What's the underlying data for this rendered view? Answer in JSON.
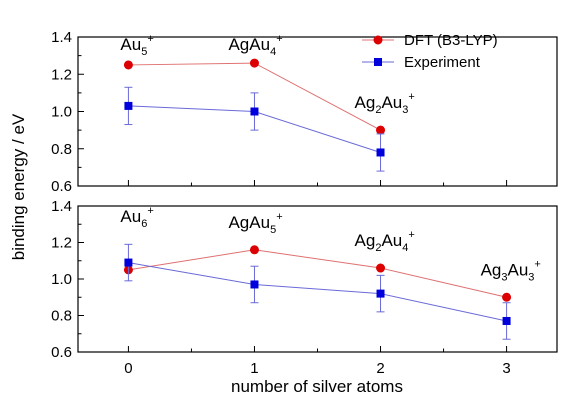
{
  "chart_data": {
    "type": "line",
    "xlabel": "number of silver atoms",
    "ylabel": "binding energy / eV",
    "legend": {
      "placement": "top-right",
      "entries": [
        {
          "label": "DFT (B3-LYP)",
          "color": "#dd0000",
          "marker": "circle"
        },
        {
          "label": "Experiment",
          "color": "#0000dd",
          "marker": "square"
        }
      ]
    },
    "grid": false,
    "panels": [
      {
        "position": "top",
        "xlim": [
          -0.4,
          3.4
        ],
        "ylim": [
          0.6,
          1.4
        ],
        "yticks": [
          0.6,
          0.8,
          1.0,
          1.2,
          1.4
        ],
        "series": [
          {
            "name": "DFT (B3-LYP)",
            "color": "#dd0000",
            "line_color": "#e07070",
            "marker": "circle",
            "x": [
              0,
              1,
              2
            ],
            "y": [
              1.25,
              1.26,
              0.9
            ]
          },
          {
            "name": "Experiment",
            "color": "#0000dd",
            "line_color": "#6a6ad8",
            "marker": "square",
            "x": [
              0,
              1,
              2
            ],
            "y": [
              1.03,
              1.0,
              0.78
            ],
            "error": [
              0.1,
              0.1,
              0.1
            ]
          }
        ],
        "annotations": [
          {
            "base": "Au",
            "sub": "5",
            "sup": "+",
            "x": 0
          },
          {
            "base": "AgAu",
            "sub": "4",
            "sup": "+",
            "x": 1
          },
          {
            "base": "Ag",
            "sub": "2",
            "base2": "Au",
            "sub2": "3",
            "sup": "+",
            "x": 2
          }
        ]
      },
      {
        "position": "bottom",
        "xlim": [
          -0.4,
          3.4
        ],
        "ylim": [
          0.6,
          1.4
        ],
        "yticks": [
          0.6,
          0.8,
          1.0,
          1.2,
          1.4
        ],
        "xticks": [
          0,
          1,
          2,
          3
        ],
        "series": [
          {
            "name": "DFT (B3-LYP)",
            "color": "#dd0000",
            "line_color": "#e07070",
            "marker": "circle",
            "x": [
              0,
              1,
              2,
              3
            ],
            "y": [
              1.05,
              1.16,
              1.06,
              0.9
            ]
          },
          {
            "name": "Experiment",
            "color": "#0000dd",
            "line_color": "#6a6ad8",
            "marker": "square",
            "x": [
              0,
              1,
              2,
              3
            ],
            "y": [
              1.09,
              0.97,
              0.92,
              0.77
            ],
            "error": [
              0.1,
              0.1,
              0.1,
              0.1
            ]
          }
        ],
        "annotations": [
          {
            "base": "Au",
            "sub": "6",
            "sup": "+",
            "x": 0
          },
          {
            "base": "AgAu",
            "sub": "5",
            "sup": "+",
            "x": 1
          },
          {
            "base": "Ag",
            "sub": "2",
            "base2": "Au",
            "sub2": "4",
            "sup": "+",
            "x": 2
          },
          {
            "base": "Ag",
            "sub": "3",
            "base2": "Au",
            "sub2": "3",
            "sup": "+",
            "x": 3
          }
        ]
      }
    ]
  }
}
